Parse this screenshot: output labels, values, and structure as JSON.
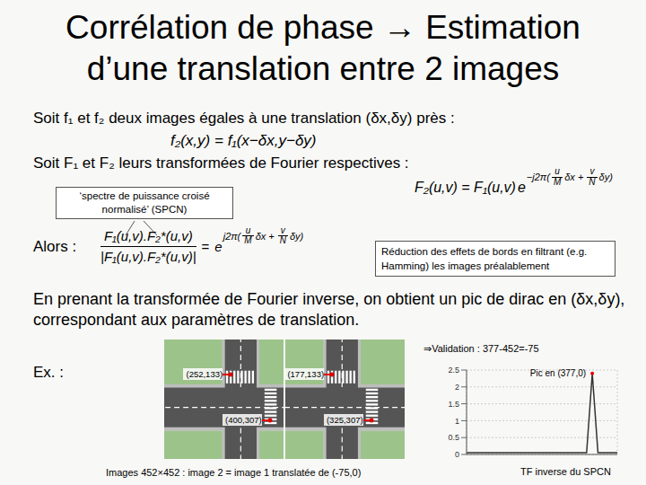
{
  "slide": {
    "title": [
      "Corrélation de phase → Estimation",
      "d’une translation entre 2 images"
    ],
    "line1": "Soit f₁ et f₂ deux images égales à une translation (δx,δy) près :",
    "shift_relation": "f₂(x,y) = f₁(x−δx,y−δy)",
    "line2": "Soit F₁ et F₂ leurs transformées de Fourier respectives :",
    "fourier_relation": {
      "text": "F₂(u,v) = F₁(u,v)",
      "base": "e",
      "exponent": {
        "prefix": "−j2π(",
        "terms": [
          {
            "num": "u",
            "den": "M",
            "after": "δx +"
          },
          {
            "num": "v",
            "den": "N",
            "after": "δy)"
          }
        ]
      }
    },
    "callout": "‘spectre de puissance croisé normalisé’ (SPCN)",
    "alors": "Alors :",
    "spcn_formula": {
      "numerator": "F₁(u,v).F₂*(u,v)",
      "denominator": "|F₁(u,v).F₂*(u,v)|",
      "equals": "=",
      "base": "e",
      "exponent": {
        "prefix": "j2π(",
        "terms": [
          {
            "num": "u",
            "den": "M",
            "after": "δx +"
          },
          {
            "num": "v",
            "den": "N",
            "after": "δy)"
          }
        ]
      }
    },
    "note_box": "Réduction des effets de bords en filtrant (e.g. Hamming) les images préalablement",
    "paragraph": "En prenant la transformée de Fourier inverse, on obtient un pic de dirac en (δx,δy), correspondant aux paramètres de translation.",
    "example_label": "Ex. :",
    "images": {
      "size": 452,
      "translation": [
        -75,
        0
      ],
      "points_image1": [
        {
          "x": 252,
          "y": 133,
          "label": "(252,133)"
        },
        {
          "x": 400,
          "y": 307,
          "label": "(400,307)"
        }
      ],
      "points_image2": [
        {
          "x": 177,
          "y": 133,
          "label": "(177,133)"
        },
        {
          "x": 325,
          "y": 307,
          "label": "(325,307)"
        }
      ],
      "caption": "Images 452×452 : image 2 = image 1 translatée de (-75,0)"
    },
    "validation": "⇒Validation : 377-452=-75"
  },
  "chart_data": {
    "type": "line",
    "title": "TF inverse du SPCN",
    "x": [
      0,
      100,
      200,
      300,
      360,
      377,
      394,
      452
    ],
    "values": [
      0.05,
      0.05,
      0.05,
      0.05,
      0.05,
      2.4,
      0.05,
      0.05
    ],
    "xlim": [
      0,
      452
    ],
    "ylim": [
      0,
      2.5
    ],
    "yticks": [
      0,
      0.5,
      1,
      1.5,
      2,
      2.5
    ],
    "tick_labels": "y",
    "grid": true,
    "color": "#333333",
    "annotations": [
      {
        "text": "Pic en (377,0)",
        "x": 377,
        "y": 2.4
      }
    ]
  }
}
